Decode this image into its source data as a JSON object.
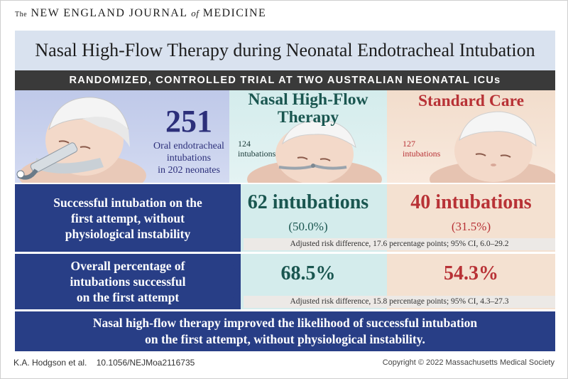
{
  "masthead": {
    "the": "The",
    "part1": "NEW ENGLAND JOURNAL",
    "of": "of",
    "part2": "MEDICINE"
  },
  "title": "Nasal High-Flow Therapy during Neonatal Endotracheal Intubation",
  "subtitle": "RANDOMIZED, CONTROLLED TRIAL AT TWO AUSTRALIAN NEONATAL ICUs",
  "overview": {
    "total": "251",
    "description": "Oral endotracheal\nintubations\nin 202 neonates"
  },
  "arms": {
    "nhf": {
      "title": "Nasal High-Flow\nTherapy",
      "n": "124\nintubations",
      "color": "#1a5650"
    },
    "sc": {
      "title": "Standard Care",
      "n": "127\nintubations",
      "color": "#b83236"
    }
  },
  "outcomes": [
    {
      "label": "Successful intubation on the\nfirst attempt, without\nphysiological instability",
      "nhf_result": "62 intubations",
      "nhf_pct": "(50.0%)",
      "sc_result": "40 intubations",
      "sc_pct": "(31.5%)",
      "ci": "Adjusted risk difference, 17.6 percentage points; 95% CI, 6.0–29.2"
    },
    {
      "label": "Overall percentage of\nintubations successful\non the first attempt",
      "nhf_result": "68.5%",
      "sc_result": "54.3%",
      "ci": "Adjusted risk difference, 15.8 percentage points; 95% CI, 4.3–27.3"
    }
  ],
  "conclusion": "Nasal high-flow therapy improved the likelihood of successful intubation\non the first attempt, without physiological instability.",
  "footer": {
    "authors": "K.A. Hodgson et al.",
    "doi": "10.1056/NEJMoa2116735",
    "copyright": "Copyright © 2022 Massachusetts Medical Society"
  },
  "colors": {
    "navy": "#283e86",
    "teal_text": "#1a5650",
    "red_text": "#b83236"
  }
}
